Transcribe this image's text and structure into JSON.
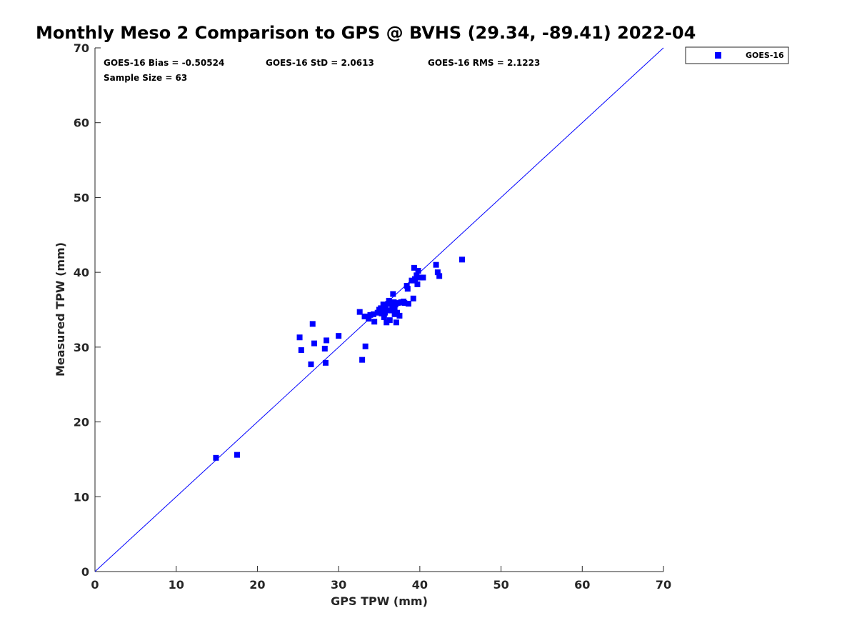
{
  "chart_data": {
    "type": "scatter",
    "title": "Monthly Meso 2 Comparison to GPS @ BVHS (29.34, -89.41) 2022-04",
    "xlabel": "GPS TPW (mm)",
    "ylabel": "Measured TPW (mm)",
    "xlim": [
      0,
      70
    ],
    "ylim": [
      0,
      70
    ],
    "xticks": [
      0,
      10,
      20,
      30,
      40,
      50,
      60,
      70
    ],
    "yticks": [
      0,
      10,
      20,
      30,
      40,
      50,
      60,
      70
    ],
    "reference_line": {
      "type": "one-to-one",
      "from": [
        0,
        0
      ],
      "to": [
        70,
        70
      ],
      "color": "#0000ff"
    },
    "stats": {
      "bias": "GOES-16 Bias = -0.50524",
      "std": "GOES-16 StD = 2.0613",
      "rms": "GOES-16 RMS = 2.1223",
      "sample_size": "Sample Size = 63"
    },
    "legend_position": "top-right, outside plot",
    "series": [
      {
        "name": "GOES-16",
        "color": "#0000ff",
        "marker": "square",
        "points": [
          [
            14.9,
            15.2
          ],
          [
            17.5,
            15.6
          ],
          [
            25.2,
            31.3
          ],
          [
            25.4,
            29.6
          ],
          [
            26.6,
            27.7
          ],
          [
            26.8,
            33.1
          ],
          [
            27.0,
            30.5
          ],
          [
            28.3,
            29.8
          ],
          [
            28.4,
            27.9
          ],
          [
            28.5,
            30.9
          ],
          [
            30.0,
            31.5
          ],
          [
            32.6,
            34.7
          ],
          [
            32.9,
            28.3
          ],
          [
            33.2,
            34.1
          ],
          [
            33.3,
            30.1
          ],
          [
            33.7,
            33.8
          ],
          [
            33.9,
            34.3
          ],
          [
            34.3,
            34.4
          ],
          [
            34.4,
            33.4
          ],
          [
            35.0,
            35.0
          ],
          [
            35.3,
            34.5
          ],
          [
            35.5,
            35.7
          ],
          [
            35.6,
            34.0
          ],
          [
            35.8,
            35.2
          ],
          [
            35.9,
            33.3
          ],
          [
            36.1,
            35.8
          ],
          [
            36.2,
            36.2
          ],
          [
            36.3,
            33.6
          ],
          [
            36.5,
            34.9
          ],
          [
            36.6,
            35.5
          ],
          [
            36.7,
            37.1
          ],
          [
            36.8,
            36.0
          ],
          [
            36.9,
            35.0
          ],
          [
            37.0,
            35.7
          ],
          [
            37.1,
            33.3
          ],
          [
            37.2,
            34.6
          ],
          [
            37.5,
            34.2
          ],
          [
            37.7,
            36.0
          ],
          [
            38.1,
            35.9
          ],
          [
            38.4,
            38.2
          ],
          [
            38.5,
            37.8
          ],
          [
            38.6,
            35.8
          ],
          [
            39.2,
            36.5
          ],
          [
            39.3,
            40.6
          ],
          [
            39.4,
            39.1
          ],
          [
            39.6,
            39.6
          ],
          [
            39.7,
            38.4
          ],
          [
            39.8,
            40.2
          ],
          [
            40.0,
            39.3
          ],
          [
            40.4,
            39.3
          ],
          [
            42.0,
            41.0
          ],
          [
            42.2,
            40.0
          ],
          [
            42.4,
            39.5
          ],
          [
            45.2,
            41.7
          ],
          [
            35.2,
            35.2
          ],
          [
            35.7,
            34.6
          ],
          [
            36.0,
            34.9
          ],
          [
            36.4,
            36.0
          ],
          [
            36.9,
            34.4
          ],
          [
            37.3,
            35.9
          ],
          [
            38.0,
            36.1
          ],
          [
            39.0,
            38.9
          ],
          [
            34.8,
            34.6
          ]
        ]
      }
    ]
  }
}
